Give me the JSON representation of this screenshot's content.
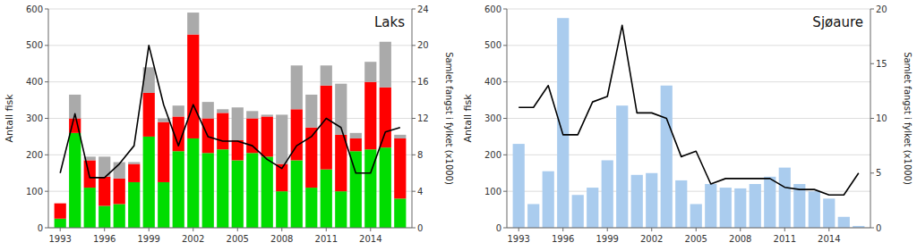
{
  "chart_data": [
    {
      "type": "bar",
      "title": "Laks",
      "stacked": true,
      "grid": true,
      "ylabel": "Antall fisk",
      "y2label": "Samlet fangst i fylket (x1000)",
      "x": [
        1993,
        1994,
        1995,
        1996,
        1997,
        1998,
        1999,
        2000,
        2001,
        2002,
        2003,
        2004,
        2005,
        2006,
        2007,
        2008,
        2009,
        2010,
        2011,
        2012,
        2013,
        2014,
        2015,
        2016
      ],
      "xlim": [
        1992.2,
        2016.8
      ],
      "xticks": [
        1993,
        1996,
        1999,
        2002,
        2005,
        2008,
        2011,
        2014
      ],
      "ylim": [
        0,
        600
      ],
      "yticks": [
        0,
        100,
        200,
        300,
        400,
        500,
        600
      ],
      "y2lim": [
        0,
        24
      ],
      "y2ticks": [
        0,
        4,
        8,
        12,
        16,
        20,
        24
      ],
      "series": [
        {
          "color": "#00dd00",
          "values": [
            25,
            260,
            110,
            60,
            65,
            125,
            250,
            125,
            210,
            245,
            205,
            215,
            185,
            205,
            195,
            100,
            185,
            110,
            160,
            100,
            210,
            215,
            220,
            80
          ]
        },
        {
          "color": "#ff0000",
          "values": [
            42,
            40,
            75,
            80,
            70,
            50,
            120,
            165,
            95,
            285,
            95,
            100,
            55,
            95,
            110,
            75,
            140,
            165,
            230,
            155,
            35,
            185,
            165,
            165
          ]
        },
        {
          "color": "#aaaaaa",
          "values": [
            0,
            65,
            10,
            55,
            45,
            5,
            70,
            10,
            30,
            60,
            45,
            10,
            90,
            20,
            5,
            135,
            120,
            90,
            55,
            140,
            15,
            55,
            125,
            10
          ]
        },
        {
          "type": "line",
          "axis": "y2",
          "color": "#000000",
          "values": [
            6,
            12.5,
            5.5,
            5.5,
            7,
            9,
            20,
            13.5,
            9,
            13.5,
            10,
            9.5,
            9.5,
            9,
            7.5,
            6.5,
            9,
            10,
            12,
            11,
            6,
            6,
            10.5,
            11
          ]
        }
      ]
    },
    {
      "type": "bar",
      "title": "Sjøaure",
      "stacked": false,
      "grid": true,
      "ylabel": "Antall fisk",
      "y2label": "Samlet fangst i fylket (x1000)",
      "x": [
        1993,
        1994,
        1995,
        1996,
        1997,
        1998,
        1999,
        2000,
        2001,
        2002,
        2003,
        2004,
        2005,
        2006,
        2007,
        2008,
        2009,
        2010,
        2011,
        2012,
        2013,
        2014,
        2015,
        2016
      ],
      "xlim": [
        1992.2,
        2016.8
      ],
      "xticks": [
        1993,
        1996,
        1999,
        2002,
        2005,
        2008,
        2011,
        2014
      ],
      "ylim": [
        0,
        600
      ],
      "yticks": [
        0,
        100,
        200,
        300,
        400,
        500,
        600
      ],
      "y2lim": [
        0,
        20
      ],
      "y2ticks": [
        0,
        5,
        10,
        15,
        20
      ],
      "series": [
        {
          "color": "#aaccee",
          "values": [
            230,
            65,
            155,
            575,
            90,
            110,
            185,
            335,
            145,
            150,
            390,
            130,
            65,
            120,
            110,
            108,
            120,
            140,
            165,
            120,
            100,
            80,
            30,
            5
          ]
        },
        {
          "type": "line",
          "axis": "y2",
          "color": "#000000",
          "values": [
            11,
            11,
            13,
            8.5,
            8.5,
            11.5,
            12,
            18.5,
            10.5,
            10.5,
            10,
            6.5,
            7,
            4,
            4.5,
            4.5,
            4.5,
            4.5,
            3.7,
            3.5,
            3.5,
            3,
            3,
            5
          ]
        }
      ]
    }
  ]
}
